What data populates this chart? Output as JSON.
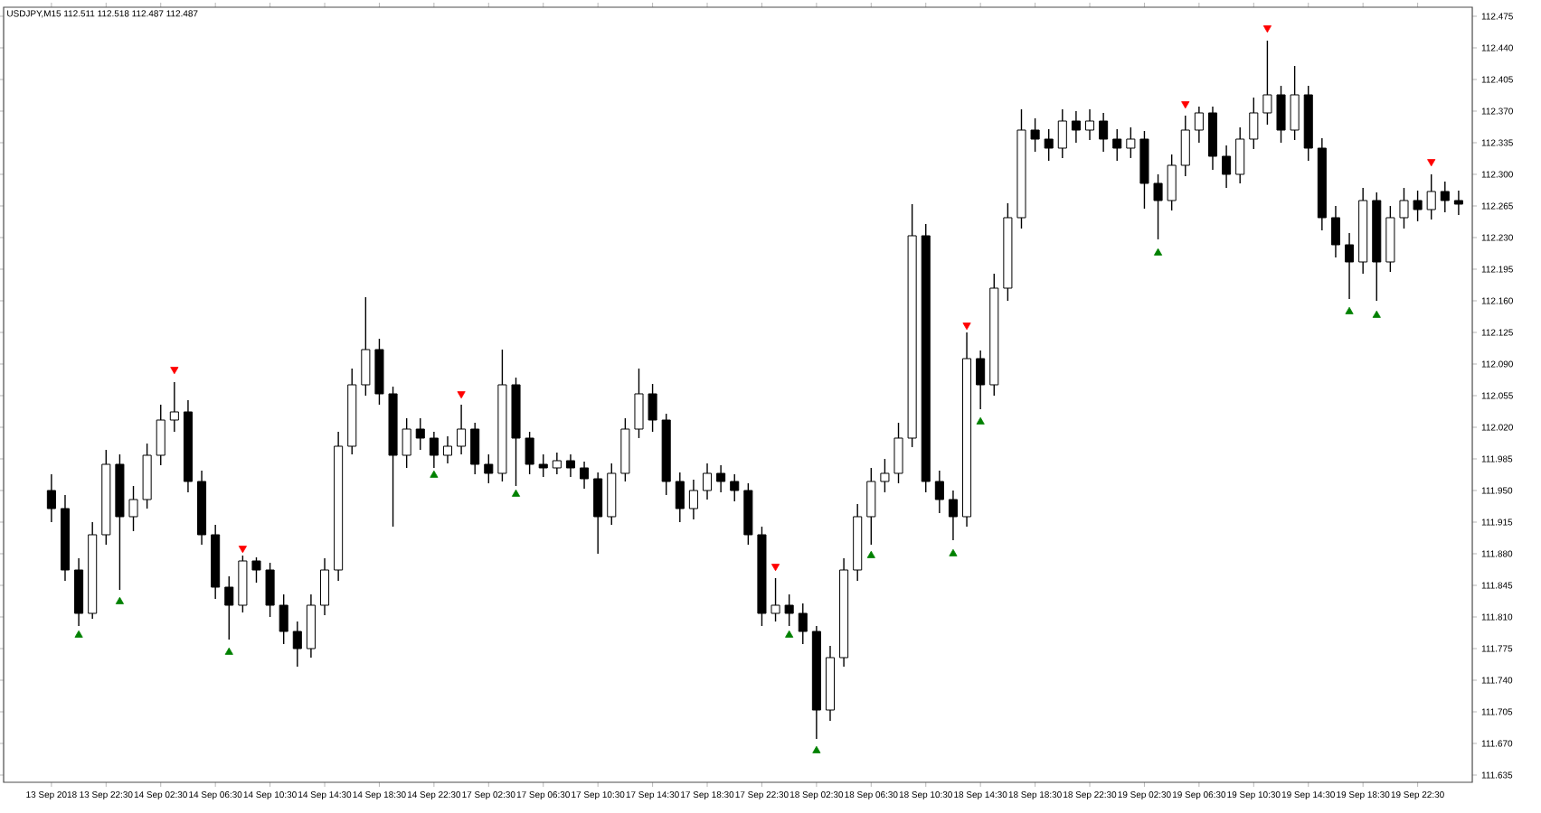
{
  "chart_data": {
    "type": "candlestick",
    "title": "USDJPY,M15 112.511 112.518 112.487 112.487",
    "color": "#000000",
    "categories": [
      "13 Sep 2018",
      null,
      null,
      null,
      "13 Sep 22:30",
      null,
      null,
      null,
      "14 Sep 02:30",
      null,
      null,
      null,
      "14 Sep 06:30",
      null,
      null,
      null,
      "14 Sep 10:30",
      null,
      null,
      null,
      "14 Sep 14:30",
      null,
      null,
      null,
      "14 Sep 18:30",
      null,
      null,
      null,
      "14 Sep 22:30",
      null,
      null,
      null,
      "17 Sep 02:30",
      null,
      null,
      null,
      "17 Sep 06:30",
      null,
      null,
      null,
      "17 Sep 10:30",
      null,
      null,
      null,
      "17 Sep 14:30",
      null,
      null,
      null,
      "17 Sep 18:30",
      null,
      null,
      null,
      "17 Sep 22:30",
      null,
      null,
      null,
      "18 Sep 02:30",
      null,
      null,
      null,
      "18 Sep 06:30",
      null,
      null,
      null,
      "18 Sep 10:30",
      null,
      null,
      null,
      "18 Sep 14:30",
      null,
      null,
      null,
      "18 Sep 18:30",
      null,
      null,
      null,
      "18 Sep 22:30",
      null,
      null,
      null,
      "19 Sep 02:30",
      null,
      null,
      null,
      "19 Sep 06:30",
      null,
      null,
      null,
      "19 Sep 10:30",
      null,
      null,
      null,
      "19 Sep 14:30",
      null,
      null,
      null,
      "19 Sep 18:30",
      null,
      null,
      null,
      "19 Sep 22:30",
      null,
      null,
      null
    ],
    "ohlc": [
      [
        111.95,
        111.968,
        111.915,
        111.93
      ],
      [
        111.93,
        111.945,
        111.85,
        111.862
      ],
      [
        111.862,
        111.875,
        111.8,
        111.814
      ],
      [
        111.814,
        111.915,
        111.808,
        111.901
      ],
      [
        111.901,
        111.995,
        111.89,
        111.979
      ],
      [
        111.979,
        111.99,
        111.84,
        111.921
      ],
      [
        111.921,
        111.955,
        111.905,
        111.94
      ],
      [
        111.94,
        112.002,
        111.93,
        111.989
      ],
      [
        111.989,
        112.045,
        111.978,
        112.028
      ],
      [
        112.028,
        112.07,
        112.015,
        112.037
      ],
      [
        112.037,
        112.05,
        111.948,
        111.96
      ],
      [
        111.96,
        111.972,
        111.89,
        111.901
      ],
      [
        111.901,
        111.912,
        111.83,
        111.843
      ],
      [
        111.843,
        111.855,
        111.785,
        111.823
      ],
      [
        111.823,
        111.878,
        111.815,
        111.872
      ],
      [
        111.872,
        111.876,
        111.848,
        111.862
      ],
      [
        111.862,
        111.87,
        111.81,
        111.823
      ],
      [
        111.823,
        111.835,
        111.78,
        111.794
      ],
      [
        111.794,
        111.805,
        111.755,
        111.775
      ],
      [
        111.775,
        111.835,
        111.765,
        111.823
      ],
      [
        111.823,
        111.875,
        111.812,
        111.862
      ],
      [
        111.862,
        112.015,
        111.85,
        111.999
      ],
      [
        111.999,
        112.085,
        111.99,
        112.067
      ],
      [
        112.067,
        112.164,
        112.055,
        112.106
      ],
      [
        112.106,
        112.118,
        112.045,
        112.057
      ],
      [
        112.057,
        112.065,
        111.91,
        111.989
      ],
      [
        111.989,
        112.03,
        111.975,
        112.018
      ],
      [
        112.018,
        112.03,
        111.995,
        112.008
      ],
      [
        112.008,
        112.015,
        111.975,
        111.989
      ],
      [
        111.989,
        112.01,
        111.98,
        111.999
      ],
      [
        111.999,
        112.045,
        111.99,
        112.018
      ],
      [
        112.018,
        112.025,
        111.968,
        111.979
      ],
      [
        111.979,
        111.99,
        111.958,
        111.969
      ],
      [
        111.969,
        112.106,
        111.96,
        112.067
      ],
      [
        112.067,
        112.075,
        111.955,
        112.008
      ],
      [
        112.008,
        112.015,
        111.968,
        111.979
      ],
      [
        111.979,
        111.99,
        111.965,
        111.975
      ],
      [
        111.975,
        111.992,
        111.968,
        111.983
      ],
      [
        111.983,
        111.99,
        111.965,
        111.975
      ],
      [
        111.975,
        111.982,
        111.952,
        111.963
      ],
      [
        111.963,
        111.97,
        111.88,
        111.921
      ],
      [
        111.921,
        111.98,
        111.912,
        111.969
      ],
      [
        111.969,
        112.03,
        111.96,
        112.018
      ],
      [
        112.018,
        112.085,
        112.008,
        112.057
      ],
      [
        112.057,
        112.068,
        112.015,
        112.028
      ],
      [
        112.028,
        112.035,
        111.945,
        111.96
      ],
      [
        111.96,
        111.97,
        111.915,
        111.93
      ],
      [
        111.93,
        111.962,
        111.918,
        111.95
      ],
      [
        111.95,
        111.98,
        111.94,
        111.969
      ],
      [
        111.969,
        111.978,
        111.948,
        111.96
      ],
      [
        111.96,
        111.968,
        111.938,
        111.95
      ],
      [
        111.95,
        111.958,
        111.89,
        111.901
      ],
      [
        111.901,
        111.91,
        111.8,
        111.814
      ],
      [
        111.814,
        111.853,
        111.805,
        111.823
      ],
      [
        111.823,
        111.835,
        111.8,
        111.814
      ],
      [
        111.814,
        111.825,
        111.78,
        111.794
      ],
      [
        111.794,
        111.8,
        111.675,
        111.707
      ],
      [
        111.707,
        111.778,
        111.695,
        111.765
      ],
      [
        111.765,
        111.875,
        111.755,
        111.862
      ],
      [
        111.862,
        111.935,
        111.85,
        111.921
      ],
      [
        111.921,
        111.975,
        111.89,
        111.96
      ],
      [
        111.96,
        111.985,
        111.948,
        111.969
      ],
      [
        111.969,
        112.025,
        111.958,
        112.008
      ],
      [
        112.008,
        112.267,
        111.998,
        112.232
      ],
      [
        112.232,
        112.245,
        111.948,
        111.96
      ],
      [
        111.96,
        111.972,
        111.925,
        111.94
      ],
      [
        111.94,
        111.95,
        111.895,
        111.921
      ],
      [
        111.921,
        112.125,
        111.91,
        112.096
      ],
      [
        112.096,
        112.105,
        112.04,
        112.067
      ],
      [
        112.067,
        112.19,
        112.055,
        112.174
      ],
      [
        112.174,
        112.268,
        112.16,
        112.252
      ],
      [
        112.252,
        112.372,
        112.24,
        112.349
      ],
      [
        112.349,
        112.362,
        112.325,
        112.339
      ],
      [
        112.339,
        112.35,
        112.315,
        112.329
      ],
      [
        112.329,
        112.372,
        112.318,
        112.359
      ],
      [
        112.359,
        112.37,
        112.335,
        112.349
      ],
      [
        112.349,
        112.372,
        112.338,
        112.359
      ],
      [
        112.359,
        112.368,
        112.325,
        112.339
      ],
      [
        112.339,
        112.35,
        112.315,
        112.329
      ],
      [
        112.329,
        112.352,
        112.318,
        112.339
      ],
      [
        112.339,
        112.348,
        112.262,
        112.29
      ],
      [
        112.29,
        112.3,
        112.228,
        112.271
      ],
      [
        112.271,
        112.322,
        112.26,
        112.31
      ],
      [
        112.31,
        112.365,
        112.298,
        112.349
      ],
      [
        112.349,
        112.375,
        112.335,
        112.368
      ],
      [
        112.368,
        112.375,
        112.305,
        112.32
      ],
      [
        112.32,
        112.332,
        112.285,
        112.3
      ],
      [
        112.3,
        112.352,
        112.29,
        112.339
      ],
      [
        112.339,
        112.385,
        112.328,
        112.368
      ],
      [
        112.368,
        112.448,
        112.355,
        112.388
      ],
      [
        112.388,
        112.398,
        112.335,
        112.349
      ],
      [
        112.349,
        112.42,
        112.338,
        112.388
      ],
      [
        112.388,
        112.398,
        112.315,
        112.329
      ],
      [
        112.329,
        112.34,
        112.238,
        112.252
      ],
      [
        112.252,
        112.265,
        112.208,
        112.222
      ],
      [
        112.222,
        112.235,
        112.162,
        112.203
      ],
      [
        112.203,
        112.285,
        112.19,
        112.271
      ],
      [
        112.271,
        112.28,
        112.16,
        112.203
      ],
      [
        112.203,
        112.265,
        112.192,
        112.252
      ],
      [
        112.252,
        112.285,
        112.24,
        112.271
      ],
      [
        112.271,
        112.282,
        112.248,
        112.261
      ],
      [
        112.261,
        112.3,
        112.25,
        112.281
      ],
      [
        112.281,
        112.292,
        112.258,
        112.271
      ],
      [
        112.271,
        112.282,
        112.255,
        112.267
      ]
    ],
    "series": [
      {
        "type": "scatter",
        "color": "#ff0000",
        "marker": "triangle",
        "values": [
          null,
          null,
          null,
          null,
          null,
          null,
          null,
          null,
          null,
          112.084,
          null,
          null,
          null,
          null,
          111.886,
          null,
          null,
          null,
          null,
          null,
          null,
          null,
          null,
          null,
          null,
          null,
          null,
          null,
          null,
          null,
          112.057,
          null,
          null,
          null,
          null,
          null,
          null,
          null,
          null,
          null,
          null,
          null,
          null,
          null,
          null,
          null,
          null,
          null,
          null,
          null,
          null,
          null,
          null,
          111.866,
          null,
          null,
          null,
          null,
          null,
          null,
          null,
          null,
          null,
          null,
          null,
          null,
          null,
          112.133,
          null,
          null,
          null,
          null,
          null,
          null,
          null,
          null,
          null,
          null,
          null,
          null,
          null,
          null,
          null,
          112.378,
          null,
          null,
          null,
          null,
          null,
          112.462,
          null,
          null,
          null,
          null,
          null,
          null,
          null,
          null,
          null,
          null,
          null,
          112.314,
          null,
          null
        ]
      },
      {
        "type": "scatter",
        "color": "#008000",
        "marker": "triangle",
        "values": [
          null,
          null,
          111.79,
          null,
          null,
          111.827,
          null,
          null,
          null,
          null,
          null,
          null,
          null,
          111.771,
          null,
          null,
          null,
          null,
          null,
          null,
          null,
          null,
          null,
          null,
          null,
          null,
          null,
          null,
          111.967,
          null,
          null,
          null,
          null,
          null,
          111.946,
          null,
          null,
          null,
          null,
          null,
          null,
          null,
          null,
          null,
          null,
          null,
          null,
          null,
          null,
          null,
          null,
          null,
          null,
          null,
          111.79,
          null,
          111.662,
          null,
          null,
          null,
          111.878,
          null,
          null,
          null,
          null,
          null,
          111.88,
          null,
          112.026,
          null,
          null,
          null,
          null,
          null,
          null,
          null,
          null,
          null,
          null,
          null,
          null,
          112.213,
          null,
          null,
          null,
          null,
          null,
          null,
          null,
          null,
          null,
          null,
          null,
          null,
          null,
          112.148,
          null,
          112.144,
          null,
          null,
          null,
          null,
          null,
          null
        ]
      }
    ],
    "ylim": [
      111.627,
      112.485
    ],
    "yticks": [
      {
        "value": 112.475,
        "label": "112.475"
      },
      {
        "value": 112.44,
        "label": "112.440"
      },
      {
        "value": 112.405,
        "label": "112.405"
      },
      {
        "value": 112.37,
        "label": "112.370"
      },
      {
        "value": 112.335,
        "label": "112.335"
      },
      {
        "value": 112.3,
        "label": "112.300"
      },
      {
        "value": 112.265,
        "label": "112.265"
      },
      {
        "value": 112.23,
        "label": "112.230"
      },
      {
        "value": 112.195,
        "label": "112.195"
      },
      {
        "value": 112.16,
        "label": "112.160"
      },
      {
        "value": 112.125,
        "label": "112.125"
      },
      {
        "value": 112.09,
        "label": "112.090"
      },
      {
        "value": 112.055,
        "label": "112.055"
      },
      {
        "value": 112.02,
        "label": "112.020"
      },
      {
        "value": 111.985,
        "label": "111.985"
      },
      {
        "value": 111.95,
        "label": "111.950"
      },
      {
        "value": 111.915,
        "label": "111.915"
      },
      {
        "value": 111.88,
        "label": "111.880"
      },
      {
        "value": 111.845,
        "label": "111.845"
      },
      {
        "value": 111.81,
        "label": "111.810"
      },
      {
        "value": 111.775,
        "label": "111.775"
      },
      {
        "value": 111.74,
        "label": "111.740"
      },
      {
        "value": 111.705,
        "label": "111.705"
      },
      {
        "value": 111.67,
        "label": "111.670"
      },
      {
        "value": 111.635,
        "label": "111.635"
      }
    ]
  }
}
